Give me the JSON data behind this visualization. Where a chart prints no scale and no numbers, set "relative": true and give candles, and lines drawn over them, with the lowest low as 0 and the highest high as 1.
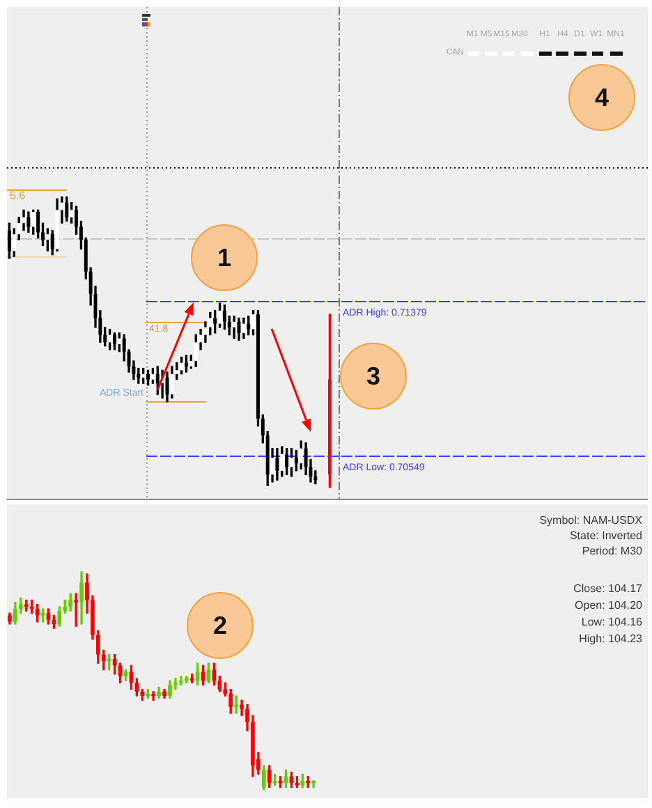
{
  "chart_data": [
    {
      "type": "candlestick",
      "tick_labels": false,
      "ylim": [
        0.7032,
        0.7296
      ],
      "categories": [
        null,
        null,
        null,
        null,
        null,
        null,
        null,
        null,
        null,
        null,
        null,
        null,
        null,
        null,
        null,
        null,
        null,
        null,
        null,
        null,
        null,
        null,
        null,
        null,
        null,
        null,
        null,
        null,
        null,
        null,
        null,
        null,
        null,
        null,
        null,
        null,
        null,
        null,
        null,
        null,
        null,
        null,
        null,
        null,
        null,
        null,
        null,
        null,
        null,
        null,
        null,
        null,
        null,
        null,
        null,
        null,
        null,
        null,
        null,
        null,
        null,
        null,
        null,
        null,
        null,
        null,
        null,
        null,
        null,
        null,
        null,
        null,
        null,
        null,
        null,
        null,
        null,
        null,
        null,
        null,
        null,
        null,
        null,
        null,
        null,
        null,
        null,
        null,
        null,
        null,
        null,
        null,
        null,
        null,
        null,
        null,
        null,
        null,
        null,
        null,
        null,
        null,
        null,
        null,
        null,
        null,
        null,
        null,
        null,
        null,
        null,
        null,
        null,
        null,
        null,
        null,
        null,
        null,
        null,
        null,
        null,
        null,
        null,
        null,
        null,
        null,
        null,
        null,
        null,
        null,
        null,
        null,
        null,
        null
      ],
      "series": [
        {
          "color": "#000000",
          "colors": [
            "#000000",
            "#ffffff",
            "#ffffff",
            "#ffffff",
            "#000000",
            "#ffffff",
            "#000000",
            "#000000",
            "#ffffff",
            "#000000",
            "#ffffff",
            "#ffffff",
            "#000000",
            "#ffffff",
            "#000000",
            "#000000",
            "#000000",
            "#000000",
            "#000000",
            "#000000",
            "#000000",
            "#ffffff",
            "#000000",
            "#ffffff",
            "#000000",
            "#000000",
            "#000000",
            "#000000",
            "#ffffff",
            "#000000",
            "#ffffff",
            "#000000",
            "#ffffff",
            "#000000",
            "#ffffff",
            "#ffffff",
            "#ffffff",
            "#000000",
            "#ffffff",
            "#ffffff",
            "#ffffff",
            "#ffffff",
            "#ffffff",
            "#000000",
            "#ffffff",
            "#000000",
            "#000000",
            "#ffffff",
            "#000000",
            "#ffffff",
            "#000000",
            "#ffffff",
            "#000000",
            "#000000",
            "#000000",
            "#ffffff",
            "#000000",
            "#ffffff",
            "#000000",
            "#ffffff",
            "#000000",
            "#ffffff",
            "#000000",
            "#000000",
            "#000000",
            null,
            null,
            null,
            null,
            null,
            null,
            null,
            null,
            null,
            null,
            null,
            null,
            null,
            null,
            null,
            null,
            null,
            null,
            null,
            null,
            null,
            null,
            null,
            null,
            null,
            null,
            null,
            null,
            null,
            null,
            null,
            null,
            null,
            null,
            null,
            null,
            null,
            null,
            null,
            null,
            null,
            null,
            null,
            null,
            null,
            null,
            null,
            null,
            null,
            null,
            null,
            null,
            null,
            null,
            null,
            null,
            null,
            null,
            null,
            null,
            null,
            null,
            null,
            null,
            null,
            null,
            null,
            null,
            null
          ],
          "ohlc": [
            [
              0.7176,
              0.718,
              0.7161,
              0.7165
            ],
            [
              0.7165,
              0.7177,
              0.7162,
              0.7174
            ],
            [
              0.7174,
              0.7183,
              0.7171,
              0.718
            ],
            [
              0.718,
              0.7187,
              0.7176,
              0.7183
            ],
            [
              0.7183,
              0.7186,
              0.7175,
              0.7178
            ],
            [
              0.7178,
              0.7187,
              0.7174,
              0.7186
            ],
            [
              0.7186,
              0.7187,
              0.7172,
              0.7175
            ],
            [
              0.7175,
              0.718,
              0.7168,
              0.7171
            ],
            [
              0.7171,
              0.7177,
              0.7165,
              0.7174
            ],
            [
              0.7174,
              0.7176,
              0.7163,
              0.7166
            ],
            [
              0.7166,
              0.7193,
              0.7165,
              0.7187
            ],
            [
              0.7187,
              0.7194,
              0.718,
              0.7191
            ],
            [
              0.7191,
              0.7194,
              0.7181,
              0.7183
            ],
            [
              0.7183,
              0.7191,
              0.718,
              0.7187
            ],
            [
              0.7187,
              0.7189,
              0.7174,
              0.7178
            ],
            [
              0.7178,
              0.7181,
              0.7166,
              0.7171
            ],
            [
              0.7171,
              0.7172,
              0.715,
              0.7154
            ],
            [
              0.7154,
              0.7156,
              0.7136,
              0.7142
            ],
            [
              0.7142,
              0.7146,
              0.7124,
              0.7129
            ],
            [
              0.7129,
              0.7133,
              0.7116,
              0.712
            ],
            [
              0.712,
              0.7124,
              0.7114,
              0.7116
            ],
            [
              0.7116,
              0.7123,
              0.7112,
              0.712
            ],
            [
              0.712,
              0.7121,
              0.7112,
              0.7115
            ],
            [
              0.7115,
              0.7121,
              0.7111,
              0.7118
            ],
            [
              0.7118,
              0.712,
              0.7106,
              0.7111
            ],
            [
              0.7111,
              0.7112,
              0.71,
              0.7103
            ],
            [
              0.7103,
              0.7106,
              0.7096,
              0.7099
            ],
            [
              0.7099,
              0.7102,
              0.7094,
              0.7097
            ],
            [
              0.7097,
              0.7102,
              0.7094,
              0.7099
            ],
            [
              0.7099,
              0.7101,
              0.7093,
              0.7096
            ],
            [
              0.7096,
              0.7102,
              0.7094,
              0.7099
            ],
            [
              0.7099,
              0.7103,
              0.7088,
              0.7094
            ],
            [
              0.7094,
              0.7101,
              0.7086,
              0.7097
            ],
            [
              0.7097,
              0.71,
              0.7084,
              0.7088
            ],
            [
              0.7088,
              0.7103,
              0.7086,
              0.7099
            ],
            [
              0.7099,
              0.7105,
              0.7096,
              0.7101
            ],
            [
              0.7101,
              0.7108,
              0.7099,
              0.7105
            ],
            [
              0.7105,
              0.7109,
              0.71,
              0.7103
            ],
            [
              0.7103,
              0.7109,
              0.7102,
              0.7106
            ],
            [
              0.7106,
              0.712,
              0.7103,
              0.7116
            ],
            [
              0.7116,
              0.7123,
              0.7112,
              0.712
            ],
            [
              0.712,
              0.7127,
              0.7116,
              0.7124
            ],
            [
              0.7124,
              0.7132,
              0.712,
              0.7129
            ],
            [
              0.7129,
              0.7133,
              0.7121,
              0.7126
            ],
            [
              0.7126,
              0.7137,
              0.7124,
              0.7133
            ],
            [
              0.7133,
              0.7136,
              0.7123,
              0.7127
            ],
            [
              0.7127,
              0.713,
              0.712,
              0.7124
            ],
            [
              0.7124,
              0.713,
              0.7118,
              0.7127
            ],
            [
              0.7127,
              0.7129,
              0.7117,
              0.7121
            ],
            [
              0.7121,
              0.7129,
              0.7118,
              0.7126
            ],
            [
              0.7126,
              0.713,
              0.712,
              0.7123
            ],
            [
              0.7123,
              0.7133,
              0.712,
              0.7131
            ],
            [
              0.7131,
              0.7133,
              0.7071,
              0.7075
            ],
            [
              0.7075,
              0.7077,
              0.7062,
              0.7066
            ],
            [
              0.7066,
              0.7068,
              0.7039,
              0.7045
            ],
            [
              0.7045,
              0.7059,
              0.7041,
              0.7054
            ],
            [
              0.7054,
              0.7059,
              0.7042,
              0.7047
            ],
            [
              0.7047,
              0.706,
              0.7044,
              0.7056
            ],
            [
              0.7056,
              0.7059,
              0.7045,
              0.7049
            ],
            [
              0.7049,
              0.7059,
              0.7044,
              0.7054
            ],
            [
              0.7054,
              0.7058,
              0.7047,
              0.7051
            ],
            [
              0.7051,
              0.7063,
              0.7048,
              0.7059
            ],
            [
              0.7059,
              0.7062,
              0.7045,
              0.7049
            ],
            [
              0.7049,
              0.7053,
              0.7041,
              0.7044
            ],
            [
              0.7044,
              0.7047,
              0.704,
              0.7042
            ],
            null,
            null,
            null,
            null,
            null,
            null,
            null,
            null,
            null,
            null,
            null,
            null,
            null,
            null,
            null,
            null,
            null,
            null,
            null,
            null,
            null,
            null,
            null,
            null,
            null,
            null,
            null,
            null,
            null,
            null,
            null,
            null,
            null,
            null,
            null,
            null,
            null,
            null,
            null,
            null,
            null,
            null,
            null,
            null,
            null,
            null,
            null,
            null,
            null,
            null,
            null,
            null,
            null,
            null,
            null,
            null,
            null,
            null,
            null,
            null,
            null,
            null,
            null,
            null,
            null,
            null,
            null,
            null,
            null
          ]
        },
        {
          "color": "#ff0000",
          "ohlc": [
            null,
            null,
            null,
            null,
            null,
            null,
            null,
            null,
            null,
            null,
            null,
            null,
            null,
            null,
            null,
            null,
            null,
            null,
            null,
            null,
            null,
            null,
            null,
            null,
            null,
            null,
            null,
            null,
            null,
            null,
            null,
            null,
            null,
            null,
            null,
            null,
            null,
            null,
            null,
            null,
            null,
            null,
            null,
            null,
            null,
            null,
            null,
            null,
            null,
            null,
            null,
            null,
            null,
            null,
            null,
            null,
            null,
            null,
            null,
            null,
            null,
            null,
            null,
            null,
            null,
            null,
            null,
            [
              0.7096,
              0.7131,
              0.7038,
              0.7045
            ],
            null,
            null,
            null,
            null,
            null,
            null,
            null,
            null,
            null,
            null,
            null,
            null,
            null,
            null,
            null,
            null,
            null,
            null,
            null,
            null,
            null,
            null,
            null,
            null,
            null,
            null,
            null,
            null,
            null,
            null,
            null,
            null,
            null,
            null,
            null,
            null,
            null,
            null,
            null,
            null,
            null,
            null,
            null,
            null,
            null,
            null,
            null,
            null,
            null,
            null,
            null,
            null,
            null,
            null,
            null,
            null,
            null,
            null,
            null,
            null,
            null,
            null,
            null,
            null,
            null,
            null
          ]
        }
      ],
      "ref_lines": [
        {
          "axis": "y",
          "value": 0.721,
          "color": "#000000",
          "line_style": "dotted"
        },
        {
          "axis": "y",
          "value": 0.7198,
          "color": "#e6a23c"
        },
        {
          "axis": "y",
          "value": 0.7172,
          "color": "#c4c4c4",
          "line_style": "dashed"
        },
        {
          "axis": "y",
          "value": 0.7162,
          "color": "#f2d5ae"
        },
        {
          "axis": "y",
          "value": 0.71379,
          "label": "ADR High: 0.71379",
          "color": "#3c3cff",
          "line_style": "dashed"
        },
        {
          "axis": "y",
          "value": 0.7127,
          "color": "#e6a23c"
        },
        {
          "axis": "y",
          "value": 0.7084,
          "color": "#e6a23c"
        },
        {
          "axis": "y",
          "value": 0.70549,
          "label": "ADR Low: 0.70549",
          "color": "#3c3cff",
          "line_style": "dashed"
        }
      ],
      "annotations": [
        "1",
        "3",
        "4",
        "M1",
        "M5",
        "M15",
        "M30",
        "H1",
        "H4",
        "D1",
        "W1",
        "MN1",
        "CAN",
        "ADR Start",
        "5.6",
        "41.8"
      ]
    },
    {
      "type": "candlestick",
      "relative": true,
      "tick_labels": false,
      "categories": [
        null,
        null,
        null,
        null,
        null,
        null,
        null,
        null,
        null,
        null,
        null,
        null,
        null,
        null,
        null,
        null,
        null,
        null,
        null,
        null,
        null,
        null,
        null,
        null,
        null,
        null,
        null,
        null,
        null,
        null,
        null,
        null,
        null,
        null,
        null,
        null,
        null,
        null,
        null,
        null,
        null,
        null,
        null,
        null,
        null,
        null,
        null,
        null,
        null,
        null,
        null,
        null,
        null,
        null,
        null,
        null,
        null,
        null,
        null,
        null,
        null,
        null,
        null,
        null,
        null,
        null,
        null,
        null,
        null,
        null,
        null,
        null,
        null,
        null,
        null,
        null,
        null,
        null,
        null,
        null,
        null,
        null,
        null,
        null,
        null,
        null,
        null,
        null,
        null,
        null,
        null,
        null,
        null,
        null,
        null,
        null,
        null,
        null,
        null,
        null,
        null,
        null,
        null,
        null,
        null,
        null,
        null,
        null,
        null,
        null,
        null,
        null,
        null,
        null,
        null,
        null
      ],
      "ohlc": [
        [
          0.8,
          0.81,
          0.76,
          0.77
        ],
        [
          0.77,
          0.86,
          0.76,
          0.83
        ],
        [
          0.83,
          0.88,
          0.81,
          0.85
        ],
        [
          0.85,
          0.87,
          0.82,
          0.84
        ],
        [
          0.84,
          0.87,
          0.81,
          0.83
        ],
        [
          0.83,
          0.85,
          0.77,
          0.8
        ],
        [
          0.8,
          0.83,
          0.77,
          0.81
        ],
        [
          0.81,
          0.83,
          0.76,
          0.78
        ],
        [
          0.78,
          0.8,
          0.74,
          0.76
        ],
        [
          0.76,
          0.84,
          0.75,
          0.82
        ],
        [
          0.82,
          0.87,
          0.81,
          0.84
        ],
        [
          0.84,
          0.9,
          0.82,
          0.87
        ],
        [
          0.87,
          0.9,
          0.75,
          0.86
        ],
        [
          0.86,
          1,
          0.76,
          0.95
        ],
        [
          0.95,
          0.99,
          0.81,
          0.87
        ],
        [
          0.87,
          0.89,
          0.69,
          0.71
        ],
        [
          0.71,
          0.73,
          0.58,
          0.62
        ],
        [
          0.62,
          0.64,
          0.55,
          0.59
        ],
        [
          0.59,
          0.62,
          0.55,
          0.6
        ],
        [
          0.6,
          0.62,
          0.53,
          0.57
        ],
        [
          0.57,
          0.58,
          0.49,
          0.52
        ],
        [
          0.52,
          0.55,
          0.5,
          0.54
        ],
        [
          0.54,
          0.57,
          0.46,
          0.49
        ],
        [
          0.49,
          0.51,
          0.43,
          0.45
        ],
        [
          0.45,
          0.46,
          0.41,
          0.43
        ],
        [
          0.43,
          0.46,
          0.42,
          0.44
        ],
        [
          0.44,
          0.45,
          0.41,
          0.43
        ],
        [
          0.43,
          0.47,
          0.42,
          0.45
        ],
        [
          0.45,
          0.46,
          0.42,
          0.43
        ],
        [
          0.43,
          0.5,
          0.42,
          0.48
        ],
        [
          0.48,
          0.51,
          0.46,
          0.49
        ],
        [
          0.49,
          0.52,
          0.48,
          0.5
        ],
        [
          0.5,
          0.52,
          0.49,
          0.51
        ],
        [
          0.51,
          0.53,
          0.49,
          0.5
        ],
        [
          0.5,
          0.58,
          0.48,
          0.54
        ],
        [
          0.54,
          0.57,
          0.48,
          0.5
        ],
        [
          0.5,
          0.58,
          0.49,
          0.55
        ],
        [
          0.55,
          0.58,
          0.48,
          0.5
        ],
        [
          0.5,
          0.52,
          0.45,
          0.46
        ],
        [
          0.46,
          0.49,
          0.43,
          0.44
        ],
        [
          0.44,
          0.46,
          0.35,
          0.38
        ],
        [
          0.38,
          0.43,
          0.35,
          0.39
        ],
        [
          0.39,
          0.41,
          0.34,
          0.37
        ],
        [
          0.37,
          0.39,
          0.27,
          0.31
        ],
        [
          0.31,
          0.34,
          0.06,
          0.11
        ],
        [
          0.14,
          0.17,
          0.07,
          0.09
        ],
        [
          0.01,
          0.11,
          0,
          0.09
        ],
        [
          0.09,
          0.11,
          0.01,
          0.03
        ],
        [
          0.03,
          0.07,
          0.02,
          0.04
        ],
        [
          0.04,
          0.06,
          0.01,
          0.03
        ],
        [
          0.03,
          0.09,
          0.01,
          0.06
        ],
        [
          0.06,
          0.08,
          0.01,
          0.03
        ],
        [
          0.03,
          0.06,
          0.01,
          0.02
        ],
        [
          0.02,
          0.07,
          0.01,
          0.04
        ],
        [
          0.04,
          0.06,
          0.01,
          0.03
        ],
        [
          0.03,
          0.04,
          0.01,
          0.04
        ],
        null,
        null,
        null,
        null,
        null,
        null,
        null,
        null,
        null,
        null,
        null,
        null,
        null,
        null,
        null,
        null,
        null,
        null,
        null,
        null,
        null,
        null,
        null,
        null,
        null,
        null,
        null,
        null,
        null,
        null,
        null,
        null,
        null,
        null,
        null,
        null,
        null,
        null,
        null,
        null,
        null,
        null,
        null,
        null,
        null,
        null,
        null,
        null,
        null,
        null,
        null,
        null,
        null,
        null,
        null,
        null,
        null,
        null,
        null,
        null
      ],
      "colors": [
        "#ff0000",
        "#66cc00",
        "#66cc00",
        "#ff0000",
        "#ff0000",
        "#ff0000",
        "#66cc00",
        "#ff0000",
        "#ff0000",
        "#66cc00",
        "#66cc00",
        "#66cc00",
        "#ff0000",
        "#66cc00",
        "#ff0000",
        "#ff0000",
        "#ff0000",
        "#ff0000",
        "#66cc00",
        "#ff0000",
        "#ff0000",
        "#66cc00",
        "#ff0000",
        "#ff0000",
        "#ff0000",
        "#66cc00",
        "#ff0000",
        "#66cc00",
        "#ff0000",
        "#66cc00",
        "#66cc00",
        "#66cc00",
        "#66cc00",
        "#ff0000",
        "#66cc00",
        "#ff0000",
        "#66cc00",
        "#ff0000",
        "#ff0000",
        "#ff0000",
        "#ff0000",
        "#66cc00",
        "#ff0000",
        "#ff0000",
        "#ff0000",
        "#ff0000",
        "#66cc00",
        "#ff0000",
        "#66cc00",
        "#ff0000",
        "#66cc00",
        "#ff0000",
        "#ff0000",
        "#66cc00",
        "#ff0000",
        "#66cc00",
        null,
        null,
        null,
        null,
        null,
        null,
        null,
        null,
        null,
        null,
        null,
        null,
        null,
        null,
        null,
        null,
        null,
        null,
        null,
        null,
        null,
        null,
        null,
        null,
        null,
        null,
        null,
        null,
        null,
        null,
        null,
        null,
        null,
        null,
        null,
        null,
        null,
        null,
        null,
        null,
        null,
        null,
        null,
        null,
        null,
        null,
        null,
        null,
        null,
        null,
        null,
        null,
        null,
        null,
        null,
        null,
        null,
        null,
        null,
        null
      ],
      "annotations": [
        "2",
        "Symbol: NAM-USDX",
        "State: Inverted",
        "Period: M30",
        "Close: 104.17",
        "Open: 104.20",
        "Low: 104.16",
        "High: 104.23"
      ]
    }
  ]
}
